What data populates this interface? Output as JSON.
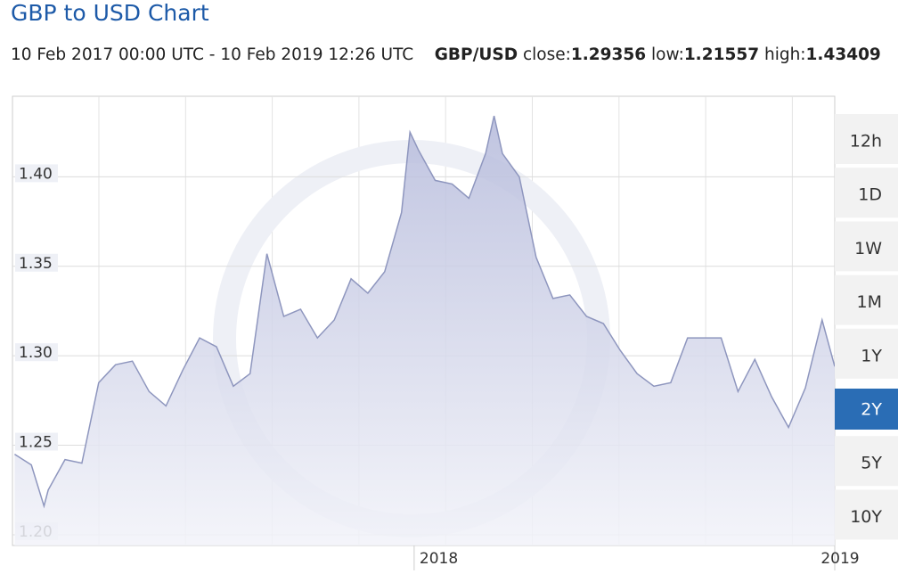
{
  "header": {
    "title": "GBP to USD Chart",
    "range": "10 Feb 2017 00:00 UTC - 10 Feb 2019 12:26 UTC",
    "pair": "GBP/USD",
    "close_label": "close:",
    "close": 1.29356,
    "low_label": "low:",
    "low": 1.21557,
    "high_label": "high:",
    "high": 1.43409
  },
  "range_buttons": {
    "labels": [
      "12h",
      "1D",
      "1W",
      "1M",
      "1Y",
      "2Y",
      "5Y",
      "10Y"
    ],
    "selected_index": 5
  },
  "chart_data": {
    "type": "area",
    "color": "#8e96be",
    "grid": true,
    "x": [
      2017.05,
      2017.09,
      2017.12,
      2017.13,
      2017.17,
      2017.21,
      2017.25,
      2017.29,
      2017.33,
      2017.37,
      2017.41,
      2017.45,
      2017.49,
      2017.53,
      2017.57,
      2017.61,
      2017.65,
      2017.69,
      2017.73,
      2017.77,
      2017.81,
      2017.85,
      2017.89,
      2017.93,
      2017.97,
      2017.99,
      2018.01,
      2018.05,
      2018.09,
      2018.13,
      2018.17,
      2018.19,
      2018.21,
      2018.25,
      2018.29,
      2018.33,
      2018.37,
      2018.41,
      2018.45,
      2018.49,
      2018.53,
      2018.57,
      2018.61,
      2018.65,
      2018.69,
      2018.73,
      2018.77,
      2018.81,
      2018.85,
      2018.89,
      2018.93,
      2018.97,
      2019.0
    ],
    "values": [
      1.245,
      1.239,
      1.216,
      1.225,
      1.242,
      1.24,
      1.285,
      1.295,
      1.297,
      1.28,
      1.272,
      1.292,
      1.31,
      1.305,
      1.283,
      1.29,
      1.357,
      1.322,
      1.326,
      1.31,
      1.32,
      1.343,
      1.335,
      1.347,
      1.38,
      1.425,
      1.415,
      1.398,
      1.396,
      1.388,
      1.413,
      1.434,
      1.413,
      1.4,
      1.355,
      1.332,
      1.334,
      1.322,
      1.318,
      1.303,
      1.29,
      1.283,
      1.285,
      1.31,
      1.31,
      1.31,
      1.28,
      1.298,
      1.277,
      1.26,
      1.282,
      1.32,
      1.294
    ],
    "xlim": [
      2017.045,
      2019.0
    ],
    "xticks": [
      2018,
      2019
    ],
    "ylim": [
      1.194,
      1.445
    ],
    "yticks": [
      {
        "value": 1.2,
        "label": "1.20"
      },
      1.25,
      {
        "value": 1.3,
        "label": "1.30"
      },
      1.35,
      {
        "value": 1.4,
        "label": "1.40"
      }
    ]
  }
}
